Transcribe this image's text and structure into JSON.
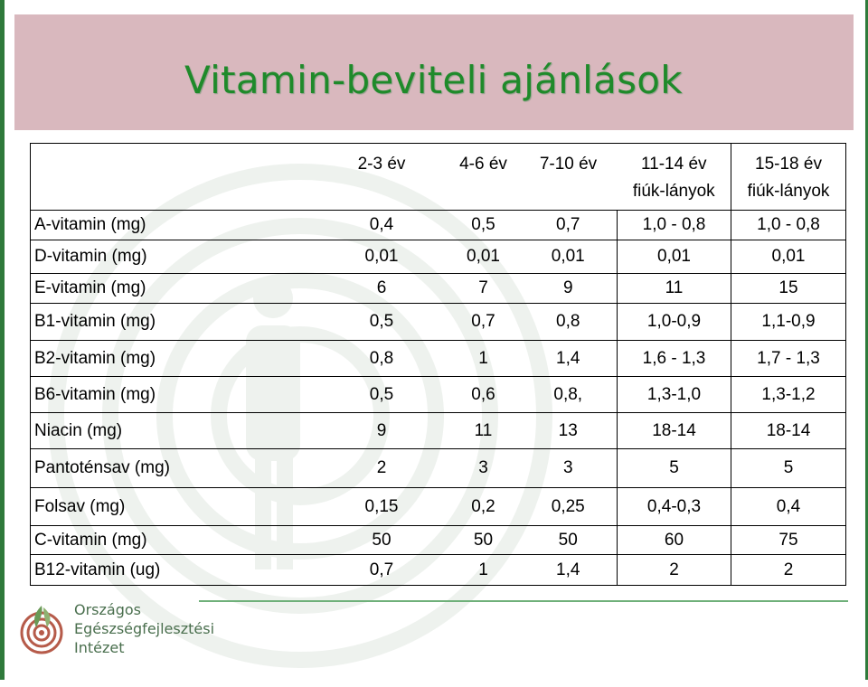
{
  "title": "Vitamin-beviteli ajánlások",
  "colors": {
    "accent": "#1f8a2a",
    "title_band": "#d9b8be",
    "edge": "#2f7a3b"
  },
  "table": {
    "headers": [
      {
        "line1": "2-3 év",
        "line2": ""
      },
      {
        "line1": "4-6 év",
        "line2": ""
      },
      {
        "line1": "7-10 év",
        "line2": ""
      },
      {
        "line1": "11-14 év",
        "line2": "fiúk-lányok"
      },
      {
        "line1": "15-18 év",
        "line2": "fiúk-lányok"
      }
    ],
    "rows": [
      {
        "label": "A-vitamin (mg)",
        "values": [
          "0,4",
          "0,5",
          "0,7",
          "1,0 - 0,8",
          "1,0 - 0,8"
        ]
      },
      {
        "label": "D-vitamin (mg)",
        "values": [
          "0,01",
          "0,01",
          "0,01",
          "0,01",
          "0,01"
        ]
      },
      {
        "label": "E-vitamin (mg)",
        "values": [
          "6",
          "7",
          "9",
          "11",
          "15"
        ]
      },
      {
        "label": "B1-vitamin (mg)",
        "values": [
          "0,5",
          "0,7",
          "0,8",
          "1,0-0,9",
          "1,1-0,9"
        ]
      },
      {
        "label": "B2-vitamin (mg)",
        "values": [
          "0,8",
          "1",
          "1,4",
          "1,6 - 1,3",
          "1,7 - 1,3"
        ]
      },
      {
        "label": "B6-vitamin (mg)",
        "values": [
          "0,5",
          "0,6",
          "0,8,",
          "1,3-1,0",
          "1,3-1,2"
        ]
      },
      {
        "label": "Niacin (mg)",
        "values": [
          "9",
          "11",
          "13",
          "18-14",
          "18-14"
        ]
      },
      {
        "label": "Pantoténsav (mg)",
        "values": [
          "2",
          "3",
          "3",
          "5",
          "5"
        ]
      },
      {
        "label": "Folsav (mg)",
        "values": [
          "0,15",
          "0,2",
          "0,25",
          "0,4-0,3",
          "0,4"
        ]
      },
      {
        "label": "C-vitamin (mg)",
        "values": [
          "50",
          "50",
          "50",
          "60",
          "75"
        ]
      },
      {
        "label": "B12-vitamin (ug)",
        "values": [
          "0,7",
          "1",
          "1,4",
          "2",
          "2"
        ]
      }
    ]
  },
  "footer": {
    "logo_icon": "oefi-logo-icon",
    "org_lines": [
      "Országos",
      "Egészségfejlesztési",
      "Intézet"
    ]
  }
}
